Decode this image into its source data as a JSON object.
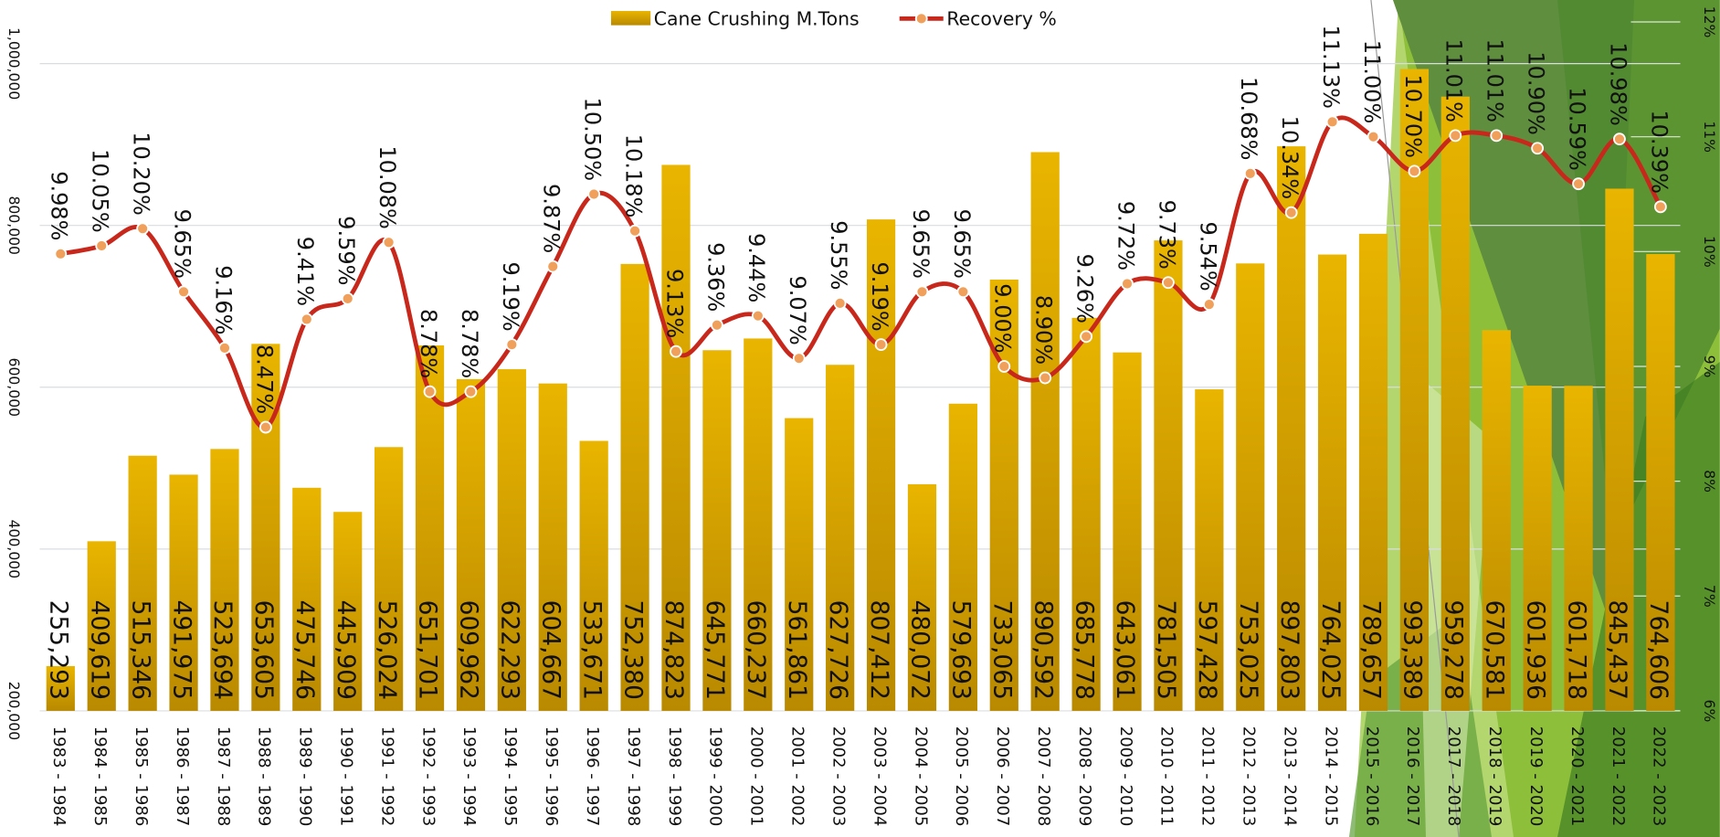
{
  "chart_data": {
    "type": "bar",
    "categories": [
      "1983 - 1984",
      "1984 - 1985",
      "1985 - 1986",
      "1986 - 1987",
      "1987 - 1988",
      "1988 - 1989",
      "1989 - 1990",
      "1990 - 1991",
      "1991 - 1992",
      "1992 - 1993",
      "1993 - 1994",
      "1994 - 1995",
      "1995 - 1996",
      "1996 - 1997",
      "1997 - 1998",
      "1998 - 1999",
      "1999 - 2000",
      "2000 - 2001",
      "2001 - 2002",
      "2002 - 2003",
      "2003 - 2004",
      "2004 - 2005",
      "2005 - 2006",
      "2006 - 2007",
      "2007 - 2008",
      "2008 - 2009",
      "2009 - 2010",
      "2010 - 2011",
      "2011 - 2012",
      "2012 - 2013",
      "2013 - 2014",
      "2014 - 2015",
      "2015 - 2016",
      "2016 - 2017",
      "2017 - 2018",
      "2018 - 2019",
      "2019 - 2020",
      "2020 - 2021",
      "2021 - 2022",
      "2022 - 2023"
    ],
    "series": [
      {
        "name": "Cane Crushing M.Tons",
        "type": "bar",
        "color": "#d9a800",
        "values": [
          255293,
          409619,
          515346,
          491975,
          523694,
          653605,
          475746,
          445909,
          526024,
          651701,
          609962,
          622293,
          604667,
          533671,
          752380,
          874823,
          645771,
          660237,
          561861,
          627726,
          807412,
          480072,
          579693,
          733065,
          890592,
          685778,
          643061,
          781505,
          597428,
          753025,
          897803,
          764025,
          789657,
          993389,
          959278,
          670581,
          601936,
          601718,
          845437,
          764606
        ],
        "value_labels": [
          "255,293",
          "409,619",
          "515,346",
          "491,975",
          "523,694",
          "653,605",
          "475,746",
          "445,909",
          "526,024",
          "651,701",
          "609,962",
          "622,293",
          "604,667",
          "533,671",
          "752,380",
          "874,823",
          "645,771",
          "660,237",
          "561,861",
          "627,726",
          "807,412",
          "480,072",
          "579,693",
          "733,065",
          "890,592",
          "685,778",
          "643,061",
          "781,505",
          "597,428",
          "753,025",
          "897,803",
          "764,025",
          "789,657",
          "993,389",
          "959,278",
          "670,581",
          "601,936",
          "601,718",
          "845,437",
          "764,606"
        ]
      },
      {
        "name": "Recovery %",
        "type": "line",
        "axis": "y2",
        "color": "#c8281c",
        "values": [
          9.98,
          10.05,
          10.2,
          9.65,
          9.16,
          8.47,
          9.41,
          9.59,
          10.08,
          8.78,
          8.78,
          9.19,
          9.87,
          10.5,
          10.18,
          9.13,
          9.36,
          9.44,
          9.07,
          9.55,
          9.19,
          9.65,
          9.65,
          9.0,
          8.9,
          9.26,
          9.72,
          9.73,
          9.54,
          10.68,
          10.34,
          11.13,
          11.0,
          10.7,
          11.01,
          11.01,
          10.9,
          10.59,
          10.98,
          10.39
        ],
        "value_labels": [
          "9.98%",
          "10.05%",
          "10.20%",
          "9.65%",
          "9.16%",
          "8.47%",
          "9.41%",
          "9.59%",
          "10.08%",
          "8.78%",
          "8.78%",
          "9.19%",
          "9.87%",
          "10.50%",
          "10.18%",
          "9.13%",
          "9.36%",
          "9.44%",
          "9.07%",
          "9.55%",
          "9.19%",
          "9.65%",
          "9.65%",
          "9.00%",
          "8.90%",
          "9.26%",
          "9.72%",
          "9.73%",
          "9.54%",
          "10.68%",
          "10.34%",
          "11.13%",
          "11.00%",
          "10.70%",
          "11.01%",
          "11.01%",
          "10.90%",
          "10.59%",
          "10.98%",
          "10.39%"
        ]
      }
    ],
    "ylim": [
      200000,
      1000000
    ],
    "yticks": [
      {
        "value": 200000,
        "label": "200,000"
      },
      {
        "value": 400000,
        "label": "400,000"
      },
      {
        "value": 600000,
        "label": "600,000"
      },
      {
        "value": 800000,
        "label": "800,000"
      },
      {
        "value": 1000000,
        "label": "1,000,000"
      }
    ],
    "y2lim": [
      6,
      12
    ],
    "y2ticks": [
      {
        "value": 6,
        "label": "6%"
      },
      {
        "value": 7,
        "label": "7%"
      },
      {
        "value": 8,
        "label": "8%"
      },
      {
        "value": 9,
        "label": "9%"
      },
      {
        "value": 10,
        "label": "10%"
      },
      {
        "value": 11,
        "label": "11%"
      },
      {
        "value": 12,
        "label": "12%"
      }
    ],
    "grid": true,
    "legend": "top"
  }
}
